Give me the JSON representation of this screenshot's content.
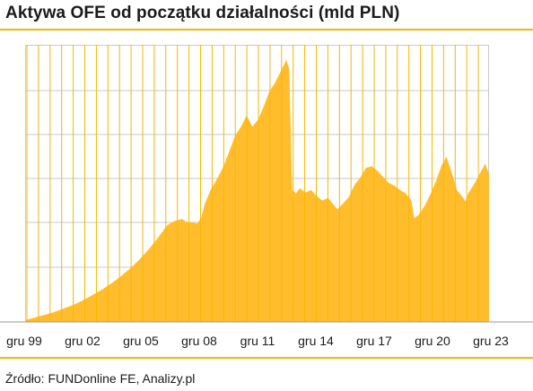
{
  "title": "Aktywa OFE od początku działalności (mld PLN)",
  "source": "Źródło: FUNDonline FE, Analizy.pl",
  "colors": {
    "area": "#ffbd2e",
    "grid_vertical": "#f5b800",
    "grid_horizontal": "#c9c9c9",
    "rule": "#f5b800"
  },
  "chart_data": {
    "type": "area",
    "title": "Aktywa OFE od początku działalności (mld PLN)",
    "xlabel": "",
    "ylabel": "",
    "x_ticks": [
      "gru 99",
      "gru 02",
      "gru 05",
      "gru 08",
      "gru 11",
      "gru 14",
      "gru 17",
      "gru 20",
      "gru 23"
    ],
    "xlim": [
      1999.5,
      2024.0
    ],
    "ylim": [
      0,
      315
    ],
    "y_tick_labels_shown": false,
    "grid": true,
    "series": [
      {
        "points": [
          [
            1999.5,
            2
          ],
          [
            2000.0,
            5
          ],
          [
            2000.5,
            8
          ],
          [
            2001.0,
            11
          ],
          [
            2001.5,
            15
          ],
          [
            2002.0,
            19
          ],
          [
            2002.5,
            24
          ],
          [
            2003.0,
            30
          ],
          [
            2003.5,
            36
          ],
          [
            2004.0,
            43
          ],
          [
            2004.5,
            51
          ],
          [
            2005.0,
            60
          ],
          [
            2005.5,
            70
          ],
          [
            2006.0,
            82
          ],
          [
            2006.5,
            95
          ],
          [
            2007.0,
            110
          ],
          [
            2007.4,
            115
          ],
          [
            2007.8,
            117
          ],
          [
            2008.0,
            114
          ],
          [
            2008.3,
            113
          ],
          [
            2008.6,
            112
          ],
          [
            2008.8,
            118
          ],
          [
            2009.0,
            135
          ],
          [
            2009.3,
            150
          ],
          [
            2009.7,
            165
          ],
          [
            2010.0,
            178
          ],
          [
            2010.3,
            195
          ],
          [
            2010.6,
            212
          ],
          [
            2010.9,
            222
          ],
          [
            2011.2,
            235
          ],
          [
            2011.35,
            228
          ],
          [
            2011.5,
            222
          ],
          [
            2011.8,
            230
          ],
          [
            2012.1,
            245
          ],
          [
            2012.4,
            262
          ],
          [
            2012.7,
            272
          ],
          [
            2013.0,
            285
          ],
          [
            2013.3,
            298
          ],
          [
            2013.45,
            287
          ],
          [
            2013.6,
            150
          ],
          [
            2013.8,
            146
          ],
          [
            2014.0,
            152
          ],
          [
            2014.3,
            147
          ],
          [
            2014.6,
            150
          ],
          [
            2014.9,
            143
          ],
          [
            2015.2,
            138
          ],
          [
            2015.5,
            141
          ],
          [
            2015.8,
            133
          ],
          [
            2016.0,
            128
          ],
          [
            2016.3,
            135
          ],
          [
            2016.6,
            142
          ],
          [
            2016.9,
            156
          ],
          [
            2017.2,
            164
          ],
          [
            2017.5,
            175
          ],
          [
            2017.8,
            177
          ],
          [
            2018.1,
            172
          ],
          [
            2018.4,
            165
          ],
          [
            2018.7,
            158
          ],
          [
            2019.0,
            155
          ],
          [
            2019.3,
            150
          ],
          [
            2019.6,
            146
          ],
          [
            2019.9,
            138
          ],
          [
            2020.05,
            118
          ],
          [
            2020.3,
            122
          ],
          [
            2020.6,
            132
          ],
          [
            2020.9,
            145
          ],
          [
            2021.2,
            160
          ],
          [
            2021.5,
            178
          ],
          [
            2021.75,
            188
          ],
          [
            2022.0,
            172
          ],
          [
            2022.3,
            150
          ],
          [
            2022.6,
            142
          ],
          [
            2022.75,
            137
          ],
          [
            2022.9,
            146
          ],
          [
            2023.2,
            156
          ],
          [
            2023.5,
            168
          ],
          [
            2023.8,
            180
          ],
          [
            2024.0,
            168
          ]
        ]
      }
    ]
  }
}
